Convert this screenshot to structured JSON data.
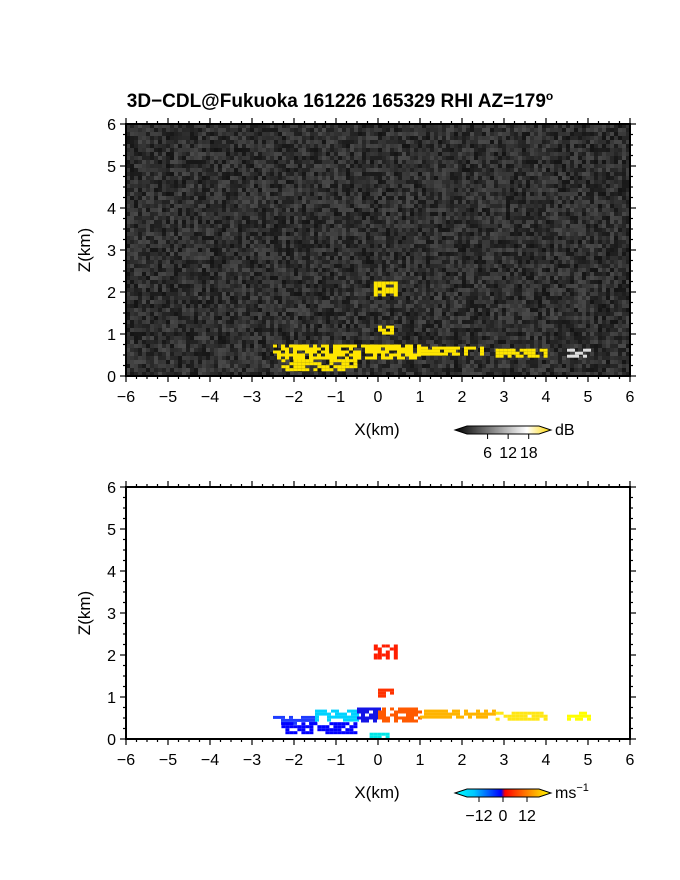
{
  "title": "3D−CDL@Fukuoka 161226 165329 RHI AZ=179",
  "title_sup": "o",
  "chart_data": [
    {
      "type": "heatmap",
      "name": "backscatter",
      "xlabel": "X(km)",
      "ylabel": "Z(km)",
      "xlim": [
        -6,
        6
      ],
      "ylim": [
        0,
        6
      ],
      "xticks": [
        "−6",
        "−5",
        "−4",
        "−3",
        "−2",
        "−1",
        "0",
        "1",
        "2",
        "3",
        "4",
        "5",
        "6"
      ],
      "yticks": [
        "0",
        "1",
        "2",
        "3",
        "4",
        "5",
        "6"
      ],
      "background": "noise",
      "colorbar": {
        "unit": "dB",
        "ticks": [
          6,
          12,
          18
        ],
        "tick_labels": [
          "6",
          "12",
          "18"
        ],
        "range": [
          0,
          21
        ],
        "colors": [
          "#000000",
          "#ffffff",
          "#ffd800"
        ]
      },
      "echoes": [
        {
          "x": [
            -2.5,
            1.0
          ],
          "z": [
            0.4,
            0.75
          ],
          "level": "strong",
          "color": "#ffe600"
        },
        {
          "x": [
            1.0,
            2.5
          ],
          "z": [
            0.5,
            0.7
          ],
          "level": "strong",
          "color": "#ffe600"
        },
        {
          "x": [
            2.8,
            4.0
          ],
          "z": [
            0.5,
            0.65
          ],
          "level": "moderate",
          "color": "#ffe600"
        },
        {
          "x": [
            4.5,
            5.0
          ],
          "z": [
            0.5,
            0.65
          ],
          "level": "weak",
          "color": "#dddddd"
        },
        {
          "x": [
            -2.3,
            -0.5
          ],
          "z": [
            0.15,
            0.4
          ],
          "level": "strong",
          "color": "#ffe600"
        },
        {
          "x": [
            0.0,
            0.3
          ],
          "z": [
            1.0,
            1.2
          ],
          "level": "strong",
          "color": "#ffe600"
        },
        {
          "x": [
            -0.1,
            0.45
          ],
          "z": [
            1.95,
            2.25
          ],
          "level": "strong",
          "color": "#ffe600"
        }
      ]
    },
    {
      "type": "heatmap",
      "name": "doppler_velocity",
      "xlabel": "X(km)",
      "ylabel": "Z(km)",
      "xlim": [
        -6,
        6
      ],
      "ylim": [
        0,
        6
      ],
      "xticks": [
        "−6",
        "−5",
        "−4",
        "−3",
        "−2",
        "−1",
        "0",
        "1",
        "2",
        "3",
        "4",
        "5",
        "6"
      ],
      "yticks": [
        "0",
        "1",
        "2",
        "3",
        "4",
        "5",
        "6"
      ],
      "background": "white",
      "colorbar": {
        "unit": "ms",
        "unit_sup": "−1",
        "ticks": [
          -12,
          0,
          12
        ],
        "tick_labels": [
          "−12",
          "0",
          "12"
        ],
        "range": [
          -18,
          18
        ],
        "colors": [
          "#00ffff",
          "#00c8ff",
          "#0000ff",
          "#ff0000",
          "#ff8000",
          "#ffff00"
        ]
      },
      "echoes": [
        {
          "x": [
            -2.5,
            -1.5
          ],
          "z": [
            0.4,
            0.55
          ],
          "velocity": -17,
          "color": "#1e3cff"
        },
        {
          "x": [
            -1.5,
            -0.5
          ],
          "z": [
            0.45,
            0.7
          ],
          "velocity": -12,
          "color": "#00d2ff"
        },
        {
          "x": [
            -0.5,
            0.0
          ],
          "z": [
            0.45,
            0.75
          ],
          "velocity": -5,
          "color": "#1414e6"
        },
        {
          "x": [
            0.0,
            1.0
          ],
          "z": [
            0.45,
            0.75
          ],
          "velocity": 5,
          "color": "#ff5a00"
        },
        {
          "x": [
            1.0,
            2.8
          ],
          "z": [
            0.5,
            0.7
          ],
          "velocity": 10,
          "color": "#ffb400"
        },
        {
          "x": [
            2.8,
            4.0
          ],
          "z": [
            0.5,
            0.65
          ],
          "velocity": 14,
          "color": "#ffe614"
        },
        {
          "x": [
            4.5,
            5.0
          ],
          "z": [
            0.5,
            0.65
          ],
          "velocity": 17,
          "color": "#ffff00"
        },
        {
          "x": [
            -2.3,
            -0.5
          ],
          "z": [
            0.15,
            0.4
          ],
          "velocity": -16,
          "color": "#0000ff"
        },
        {
          "x": [
            -0.2,
            0.2
          ],
          "z": [
            0.0,
            0.15
          ],
          "velocity": -14,
          "color": "#00e6e6"
        },
        {
          "x": [
            0.0,
            0.3
          ],
          "z": [
            1.0,
            1.2
          ],
          "velocity": 6,
          "color": "#ff3200"
        },
        {
          "x": [
            -0.1,
            0.45
          ],
          "z": [
            1.95,
            2.25
          ],
          "velocity": 3,
          "color": "#ff1e00"
        }
      ]
    }
  ]
}
